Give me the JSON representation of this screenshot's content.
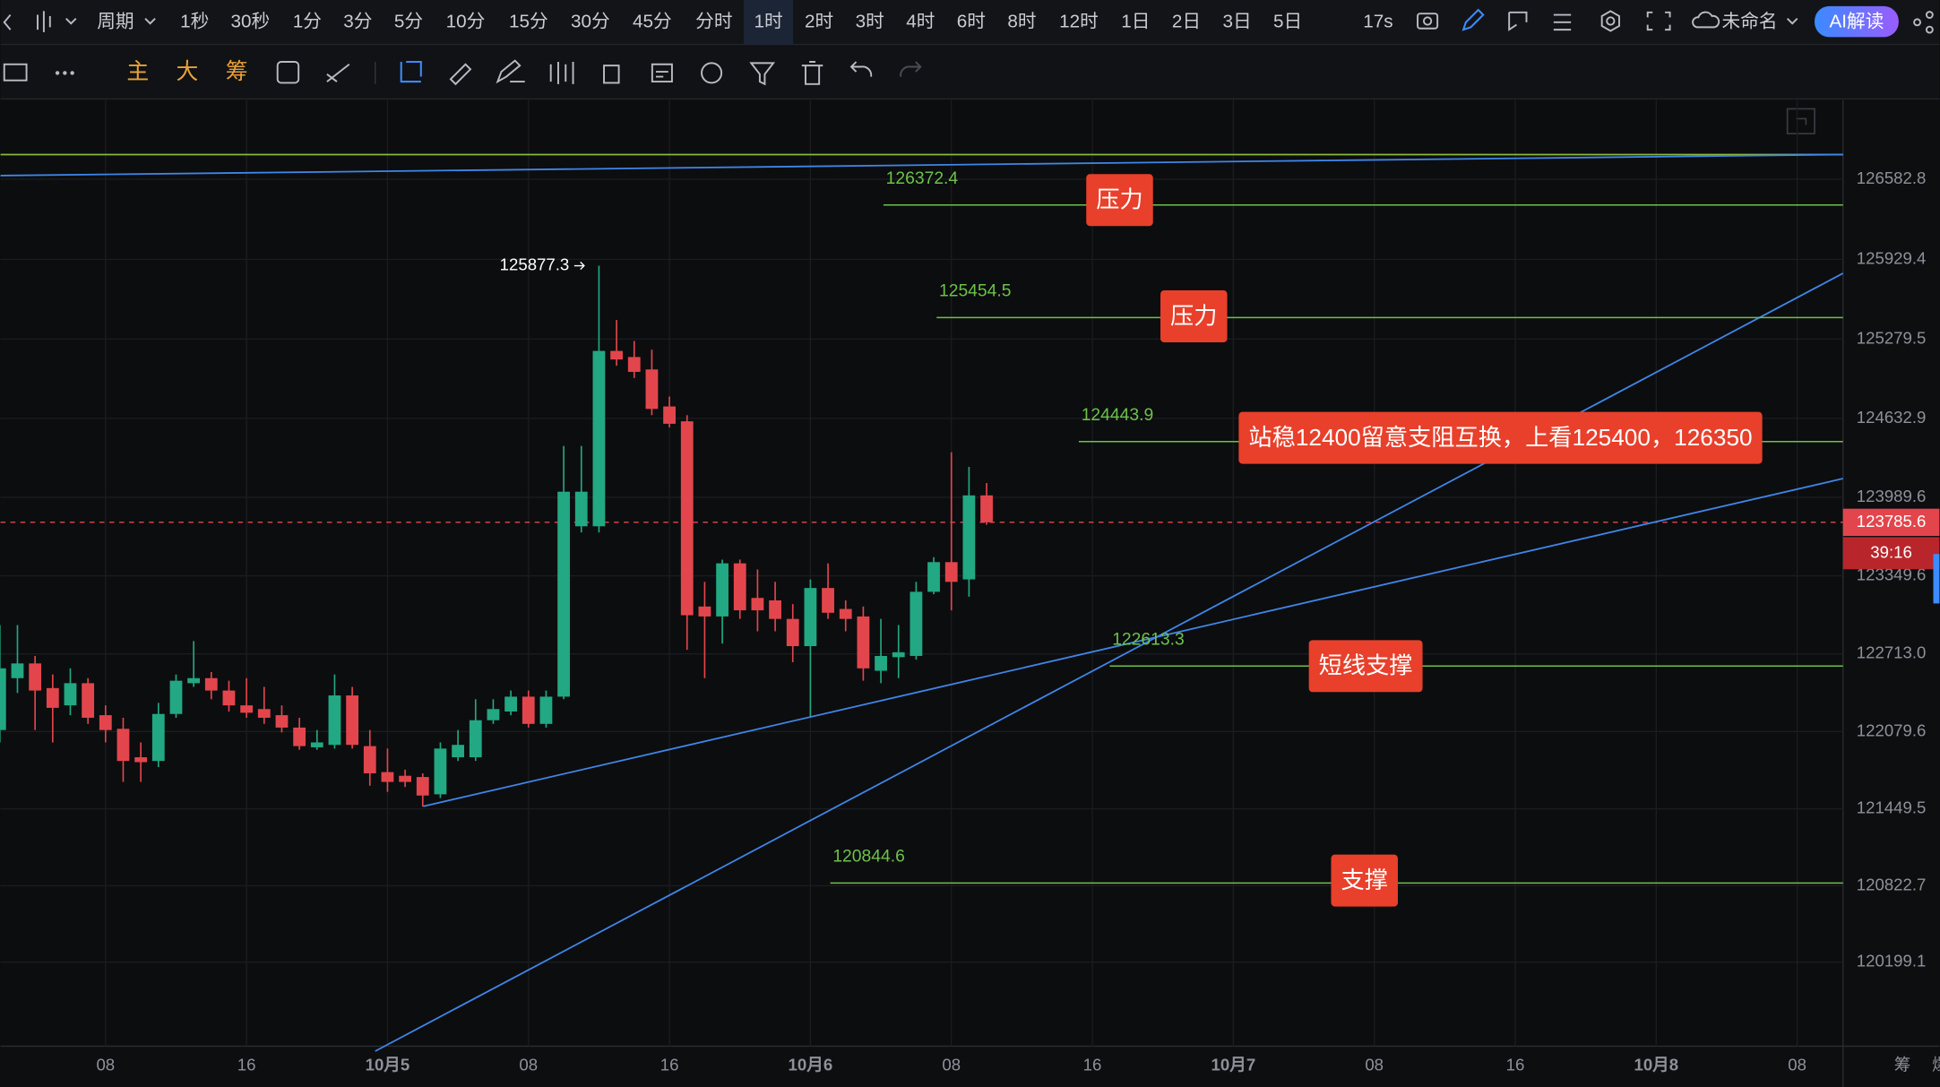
{
  "toolbar": {
    "period_label": "周期",
    "periods": [
      "1秒",
      "30秒",
      "1分",
      "3分",
      "5分",
      "10分",
      "15分",
      "30分",
      "45分",
      "分时",
      "1时",
      "2时",
      "3时",
      "4时",
      "6时",
      "8时",
      "12时",
      "1日",
      "2日",
      "3日",
      "5日"
    ],
    "active_period": 10,
    "timer": "17s",
    "workspace": "未命名",
    "ai_button": "AI解读"
  },
  "tools": [
    "主",
    "大",
    "筹"
  ],
  "side_tools": [
    "筹",
    "爆"
  ],
  "chart_data": {
    "type": "candlestick",
    "x": [
      2,
      3,
      4,
      5,
      6,
      7,
      8,
      9,
      10,
      11,
      12,
      13,
      14,
      15,
      16,
      17,
      18,
      19,
      20,
      21,
      22,
      23,
      24,
      25,
      26,
      27,
      28,
      29,
      30,
      31,
      32,
      33,
      34,
      35,
      36,
      37,
      38,
      39,
      40,
      41,
      42,
      43,
      44,
      45,
      46,
      47,
      48,
      49,
      50,
      51,
      52,
      53,
      54,
      55,
      56,
      57,
      58
    ],
    "open": [
      122092,
      122515,
      122635,
      122434,
      122293,
      122474,
      122213,
      122102,
      121870,
      121840,
      122223,
      122474,
      122515,
      122414,
      122293,
      122263,
      122213,
      122112,
      121951,
      121971,
      122374,
      121961,
      121749,
      121719,
      121709,
      121568,
      121870,
      121870,
      122172,
      122243,
      122364,
      122142,
      122364,
      123753,
      123753,
      125183,
      125133,
      125032,
      124730,
      124609,
      123099,
      123018,
      123451,
      123169,
      123149,
      122998,
      122776,
      123250,
      123079,
      123018,
      122575,
      122686,
      122696,
      123219,
      123461,
      123320,
      124005
    ],
    "high": [
      122948,
      122948,
      122696,
      122545,
      122595,
      122515,
      122293,
      122192,
      121991,
      122313,
      122545,
      122817,
      122565,
      122494,
      122515,
      122444,
      122293,
      122192,
      122092,
      122545,
      122444,
      122092,
      121941,
      121769,
      121739,
      121991,
      122092,
      122343,
      122343,
      122414,
      122414,
      122414,
      124408,
      124408,
      125877.3,
      125435,
      125264,
      125193,
      124811,
      124659,
      123300,
      123481,
      123481,
      123401,
      123300,
      123119,
      123320,
      123451,
      123149,
      123099,
      122998,
      122948,
      123300,
      123501,
      124357,
      124237,
      124106
    ],
    "low": [
      121991,
      122394,
      122092,
      121991,
      122213,
      122142,
      121991,
      121669,
      121669,
      121790,
      122192,
      122444,
      122343,
      122243,
      122192,
      122142,
      122072,
      121931,
      121931,
      121941,
      121941,
      121638,
      121588,
      121628,
      121467,
      121538,
      121840,
      121840,
      122142,
      122213,
      122112,
      122112,
      122343,
      123703,
      123703,
      125062,
      124962,
      124659,
      124559,
      122746,
      122515,
      122797,
      122998,
      122897,
      122897,
      122645,
      122192,
      122998,
      122897,
      122494,
      122474,
      122515,
      122666,
      123199,
      123068,
      123179,
      123766
    ],
    "close": [
      122595,
      122635,
      122414,
      122273,
      122474,
      122192,
      122092,
      121840,
      121830,
      122223,
      122494,
      122515,
      122414,
      122293,
      122233,
      122192,
      122112,
      121961,
      121991,
      122374,
      121971,
      121739,
      121669,
      121669,
      121558,
      121941,
      121971,
      122172,
      122263,
      122364,
      122142,
      122364,
      124035,
      124035,
      125183,
      125113,
      125012,
      124710,
      124589,
      123028,
      123018,
      123451,
      123068,
      123068,
      122998,
      122776,
      123250,
      123048,
      122998,
      122595,
      122696,
      122726,
      123219,
      123461,
      123300,
      124005,
      123785.6
    ],
    "up_color": "#22a882",
    "down_color": "#e2464c",
    "max_label": 125877.3,
    "last_price": 123785.6,
    "countdown": "39:16",
    "xlim": [
      2.04,
      106.6
    ],
    "xticks": [
      {
        "value": 8,
        "label": "08"
      },
      {
        "value": 16,
        "label": "16"
      },
      {
        "value": 24,
        "label": "10月5"
      },
      {
        "value": 32,
        "label": "08"
      },
      {
        "value": 40,
        "label": "16"
      },
      {
        "value": 48,
        "label": "10月6"
      },
      {
        "value": 56,
        "label": "08"
      },
      {
        "value": 64,
        "label": "16"
      },
      {
        "value": 72,
        "label": "10月7"
      },
      {
        "value": 80,
        "label": "08"
      },
      {
        "value": 88,
        "label": "16"
      },
      {
        "value": 96,
        "label": "10月8"
      },
      {
        "value": 104,
        "label": "08"
      }
    ],
    "ylim": [
      119514.4,
      127227.2
    ],
    "yticks": [
      126582.8,
      125929.4,
      125279.5,
      124632.9,
      123989.6,
      123349.6,
      {
        "value": 122713,
        "label": "122713.0"
      },
      122079.6,
      121449.5,
      120822.7,
      120199.1
    ],
    "grid": true,
    "levels": [
      {
        "value": 126372.4,
        "note": "压力"
      },
      {
        "value": 125454.5,
        "note": "压力"
      },
      {
        "value": 124443.9,
        "note": "站稳12400留意支阻互换，上看125400，126350"
      },
      {
        "value": 122613.3,
        "note": "短线支撑"
      },
      {
        "value": 120844.6,
        "note": "支撑"
      }
    ],
    "level_color": "#6cc24a",
    "note_color": "#e8402b"
  }
}
